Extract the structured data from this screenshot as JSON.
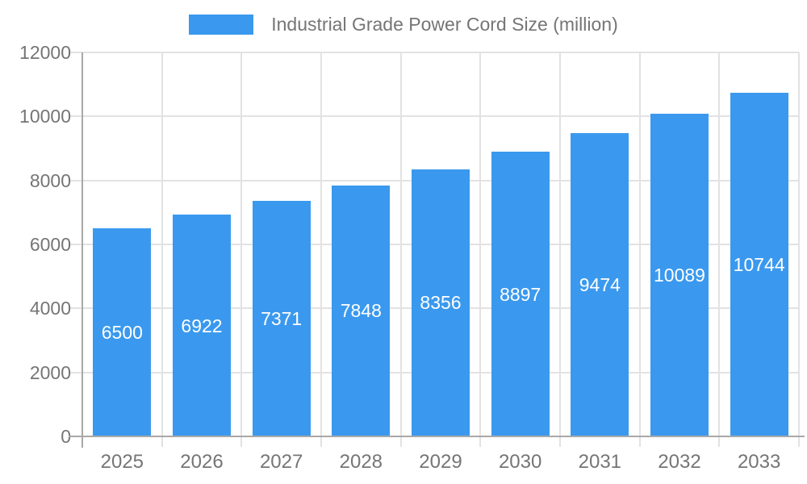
{
  "legend": {
    "label": "Industrial Grade Power Cord Size (million)"
  },
  "colors": {
    "bar": "#3a99ee",
    "grid": "#e2e2e2",
    "axis": "#a8a8a8",
    "text": "#757575",
    "bar_label": "#ffffff"
  },
  "chart_data": {
    "type": "bar",
    "title": "",
    "legend": "Industrial Grade Power Cord Size (million)",
    "legend_position": "top-center",
    "categories": [
      "2025",
      "2026",
      "2027",
      "2028",
      "2029",
      "2030",
      "2031",
      "2032",
      "2033"
    ],
    "values": [
      6500,
      6922,
      7371,
      7848,
      8356,
      8897,
      9474,
      10089,
      10744
    ],
    "xlabel": "",
    "ylabel": "",
    "ylim": [
      0,
      12000
    ],
    "yticks": [
      0,
      2000,
      4000,
      6000,
      8000,
      10000,
      12000
    ],
    "grid": true,
    "bar_value_labels": "inside-center"
  }
}
